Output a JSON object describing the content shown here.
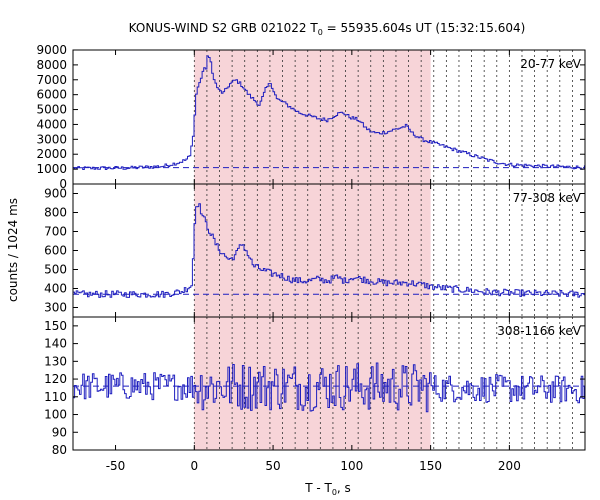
{
  "chart_data": {
    "type": "line",
    "title": "KONUS-WIND S2 GRB 021022 T",
    "title_sub": "0",
    "title_rest": " = 55935.604s UT (15:32:15.604)",
    "xlabel": "T - T",
    "xlabel_sub": "0",
    "xlabel_rest": ", s",
    "ylabel": "counts / 1024 ms",
    "xlim": [
      -77,
      248
    ],
    "x_ticks": [
      -50,
      0,
      50,
      100,
      150,
      200
    ],
    "x_tick_labels": [
      "-50",
      "0",
      "50",
      "100",
      "150",
      "200"
    ],
    "colors": {
      "line": "#1f1fbf",
      "shade": "#f7d4d8",
      "vline": "#333333",
      "frame": "#000000"
    },
    "shaded_interval": [
      0,
      150
    ],
    "vertical_lines": [
      0,
      8,
      16,
      24,
      32,
      40,
      48,
      56,
      64,
      72,
      80,
      88,
      96,
      104,
      112,
      120,
      128,
      136,
      144,
      152,
      160,
      168,
      176,
      184,
      192,
      200,
      208,
      216,
      224,
      232,
      240
    ],
    "panels": [
      {
        "band": "20-77 keV",
        "ylim": [
          0,
          9000
        ],
        "y_ticks": [
          0,
          1000,
          2000,
          3000,
          4000,
          5000,
          6000,
          7000,
          8000,
          9000
        ],
        "y_tick_labels": [
          "0",
          "1000",
          "2000",
          "3000",
          "4000",
          "5000",
          "6000",
          "7000",
          "8000",
          "9000"
        ],
        "background": 1100,
        "profile": [
          [
            -77,
            1050
          ],
          [
            -40,
            1080
          ],
          [
            -20,
            1200
          ],
          [
            -12,
            1400
          ],
          [
            -6,
            1600
          ],
          [
            -3,
            1900
          ],
          [
            -1,
            3500
          ],
          [
            1,
            6300
          ],
          [
            3,
            6800
          ],
          [
            5,
            7600
          ],
          [
            7,
            7800
          ],
          [
            8,
            8600
          ],
          [
            10,
            8200
          ],
          [
            12,
            7000
          ],
          [
            15,
            6300
          ],
          [
            18,
            6100
          ],
          [
            22,
            6700
          ],
          [
            26,
            7000
          ],
          [
            30,
            6600
          ],
          [
            34,
            6000
          ],
          [
            38,
            5600
          ],
          [
            41,
            5300
          ],
          [
            45,
            6400
          ],
          [
            48,
            6800
          ],
          [
            52,
            5700
          ],
          [
            56,
            5500
          ],
          [
            60,
            5200
          ],
          [
            66,
            4800
          ],
          [
            72,
            4600
          ],
          [
            78,
            4400
          ],
          [
            84,
            4300
          ],
          [
            90,
            4700
          ],
          [
            94,
            4800
          ],
          [
            98,
            4500
          ],
          [
            104,
            4300
          ],
          [
            108,
            3800
          ],
          [
            112,
            3500
          ],
          [
            116,
            3400
          ],
          [
            122,
            3500
          ],
          [
            128,
            3700
          ],
          [
            134,
            3900
          ],
          [
            138,
            3400
          ],
          [
            144,
            3000
          ],
          [
            150,
            2800
          ],
          [
            156,
            2600
          ],
          [
            162,
            2400
          ],
          [
            168,
            2200
          ],
          [
            174,
            2000
          ],
          [
            180,
            1800
          ],
          [
            186,
            1600
          ],
          [
            192,
            1450
          ],
          [
            200,
            1300
          ],
          [
            210,
            1250
          ],
          [
            220,
            1200
          ],
          [
            235,
            1150
          ],
          [
            248,
            1100
          ]
        ],
        "noise": 120
      },
      {
        "band": "77-308 keV",
        "ylim": [
          250,
          950
        ],
        "y_ticks": [
          300,
          400,
          500,
          600,
          700,
          800,
          900
        ],
        "y_tick_labels": [
          "300",
          "400",
          "500",
          "600",
          "700",
          "800",
          "900"
        ],
        "background": 370,
        "profile": [
          [
            -77,
            370
          ],
          [
            -20,
            370
          ],
          [
            -8,
            385
          ],
          [
            -2,
            420
          ],
          [
            -1,
            600
          ],
          [
            0,
            780
          ],
          [
            1,
            860
          ],
          [
            3,
            830
          ],
          [
            5,
            780
          ],
          [
            7,
            740
          ],
          [
            10,
            690
          ],
          [
            14,
            620
          ],
          [
            18,
            580
          ],
          [
            22,
            550
          ],
          [
            26,
            580
          ],
          [
            30,
            640
          ],
          [
            33,
            590
          ],
          [
            37,
            520
          ],
          [
            42,
            500
          ],
          [
            48,
            480
          ],
          [
            54,
            470
          ],
          [
            60,
            450
          ],
          [
            66,
            440
          ],
          [
            72,
            440
          ],
          [
            78,
            450
          ],
          [
            84,
            440
          ],
          [
            90,
            460
          ],
          [
            95,
            440
          ],
          [
            100,
            460
          ],
          [
            106,
            450
          ],
          [
            112,
            440
          ],
          [
            120,
            430
          ],
          [
            128,
            430
          ],
          [
            136,
            430
          ],
          [
            144,
            420
          ],
          [
            150,
            410
          ],
          [
            160,
            400
          ],
          [
            175,
            390
          ],
          [
            190,
            380
          ],
          [
            210,
            375
          ],
          [
            248,
            370
          ]
        ],
        "noise": 18
      },
      {
        "band": "308-1166 keV",
        "ylim": [
          80,
          155
        ],
        "y_ticks": [
          80,
          90,
          100,
          110,
          120,
          130,
          140,
          150
        ],
        "y_tick_labels": [
          "80",
          "90",
          "100",
          "110",
          "120",
          "130",
          "140",
          "150"
        ],
        "background": 116,
        "profile": [
          [
            -77,
            116
          ],
          [
            0,
            116
          ],
          [
            40,
            116
          ],
          [
            100,
            116
          ],
          [
            150,
            115
          ],
          [
            248,
            114
          ]
        ],
        "noise": 8,
        "noise_burst": 14
      }
    ]
  }
}
